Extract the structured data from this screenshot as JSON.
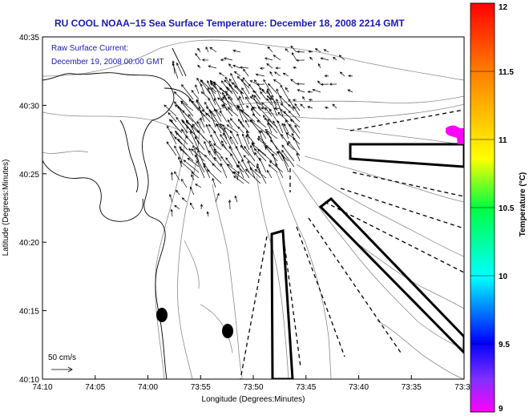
{
  "title": "RU COOL  NOAA−15  Sea Surface Temperature:  December 18, 2008 2214 GMT",
  "current_label": "Raw Surface Current:",
  "current_time": "December 19, 2008 00:00 GMT",
  "scale_label": "50 cm/s",
  "chart_data": {
    "type": "map",
    "xlabel": "Longitude (Degrees:Minutes)",
    "ylabel": "Latitude (Degrees:Minutes)",
    "x_ticks": [
      "74:10",
      "74:05",
      "74:00",
      "73:55",
      "73:50",
      "73:45",
      "73:40",
      "73:35",
      "73:3"
    ],
    "y_ticks": [
      "40:35",
      "40:30",
      "40:25",
      "40:20",
      "40:15",
      "40:10"
    ],
    "colorbar": {
      "label": "Temperature (°C)",
      "ticks": [
        "12",
        "11.5",
        "11",
        "10.5",
        "10",
        "9.5",
        "9"
      ],
      "range": [
        9,
        12
      ]
    }
  }
}
